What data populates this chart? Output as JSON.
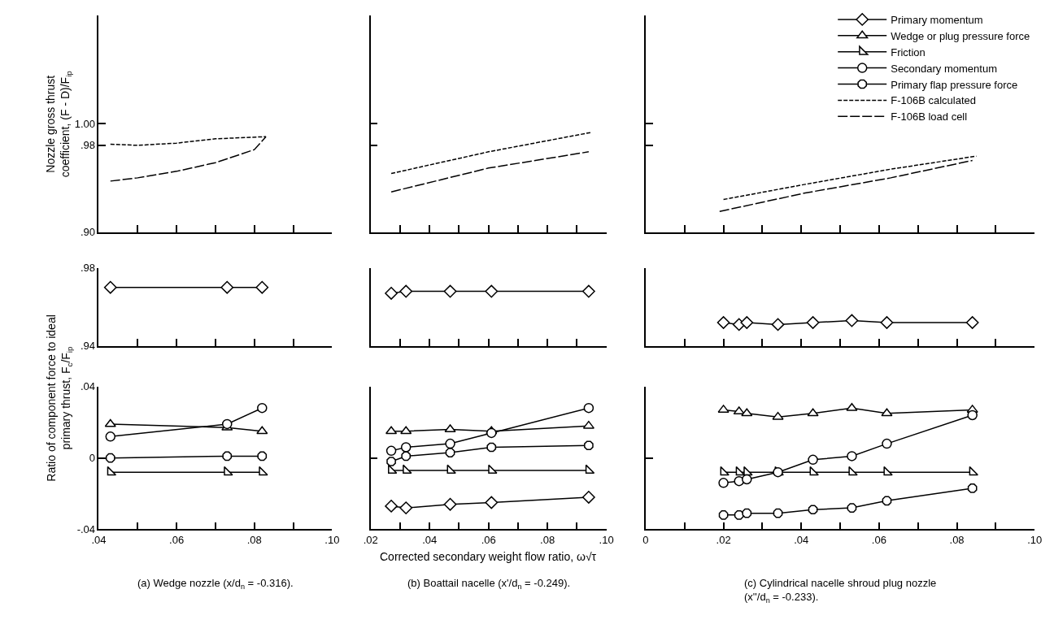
{
  "chart_data": [
    {
      "type": "line",
      "legend": "top right",
      "ylabel": "Nozzle gross thrust\ncoefficient, (F - D)/F$_{ip}$",
      "xlim": [
        0.04,
        0.1
      ],
      "xticks": [
        {
          "value": 0.04,
          "label": ".04"
        },
        {
          "value": 0.05,
          "label": null
        },
        {
          "value": 0.06,
          "label": ".06"
        },
        {
          "value": 0.07,
          "label": null
        },
        {
          "value": 0.08,
          "label": ".08"
        },
        {
          "value": 0.09,
          "label": null
        },
        {
          "value": 0.1,
          "label": ".10"
        }
      ],
      "ylim": [
        0.9,
        1.1
      ],
      "yticks": [
        {
          "value": 0.9,
          "label": ".90"
        },
        {
          "value": 0.98,
          "label": ".98"
        },
        {
          "value": 1.0,
          "label": "1.00"
        }
      ],
      "tick_labels": "y",
      "series": [
        {
          "name": "F-106B calculated",
          "color": "#000000",
          "marker": "none",
          "line_style": "dashed",
          "x": [
            0.043,
            0.05,
            0.06,
            0.07,
            0.083
          ],
          "values": [
            0.981,
            0.98,
            0.982,
            0.986,
            0.988
          ]
        },
        {
          "name": "F-106B load cell",
          "color": "#000000",
          "marker": "none",
          "line_style": "dashed",
          "x": [
            0.043,
            0.05,
            0.06,
            0.07,
            0.08,
            0.083
          ],
          "values": [
            0.947,
            0.95,
            0.956,
            0.964,
            0.976,
            0.988
          ]
        }
      ]
    },
    {
      "type": "line",
      "legend": "top right",
      "xlim": [
        0.02,
        0.1
      ],
      "xticks": [
        {
          "value": 0.02,
          "label": ".02"
        },
        {
          "value": 0.03,
          "label": null
        },
        {
          "value": 0.04,
          "label": ".04"
        },
        {
          "value": 0.05,
          "label": null
        },
        {
          "value": 0.06,
          "label": ".06"
        },
        {
          "value": 0.07,
          "label": null
        },
        {
          "value": 0.08,
          "label": ".08"
        },
        {
          "value": 0.09,
          "label": null
        },
        {
          "value": 0.1,
          "label": ".10"
        }
      ],
      "ylim": [
        0.9,
        1.1
      ],
      "yticks": [
        {
          "value": 0.9,
          "label": ".90"
        },
        {
          "value": 0.98,
          "label": ".98"
        },
        {
          "value": 1.0,
          "label": "1.00"
        }
      ],
      "tick_labels": false,
      "series": [
        {
          "name": "F-106B calculated",
          "color": "#000000",
          "marker": "none",
          "line_style": "dashed",
          "x": [
            0.027,
            0.06,
            0.095
          ],
          "values": [
            0.954,
            0.974,
            0.992
          ]
        },
        {
          "name": "F-106B load cell",
          "color": "#000000",
          "marker": "none",
          "line_style": "dashed",
          "x": [
            0.027,
            0.06,
            0.094
          ],
          "values": [
            0.937,
            0.959,
            0.974
          ]
        }
      ]
    },
    {
      "type": "line",
      "legend": "top right",
      "xlim": [
        0,
        0.1
      ],
      "xticks": [
        {
          "value": 0,
          "label": "0"
        },
        {
          "value": 0.01,
          "label": null
        },
        {
          "value": 0.02,
          "label": ".02"
        },
        {
          "value": 0.03,
          "label": null
        },
        {
          "value": 0.04,
          "label": ".04"
        },
        {
          "value": 0.05,
          "label": null
        },
        {
          "value": 0.06,
          "label": ".06"
        },
        {
          "value": 0.07,
          "label": null
        },
        {
          "value": 0.08,
          "label": ".08"
        },
        {
          "value": 0.09,
          "label": null
        },
        {
          "value": 0.1,
          "label": ".10"
        }
      ],
      "ylim": [
        0.9,
        1.1
      ],
      "yticks": [
        {
          "value": 0.9,
          "label": ".90"
        },
        {
          "value": 0.98,
          "label": ".98"
        },
        {
          "value": 1.0,
          "label": "1.00"
        }
      ],
      "tick_labels": false,
      "series": [
        {
          "name": "F-106B calculated",
          "color": "#000000",
          "marker": "none",
          "line_style": "dashed",
          "x": [
            0.02,
            0.041,
            0.063,
            0.085
          ],
          "values": [
            0.93,
            0.944,
            0.958,
            0.97
          ]
        },
        {
          "name": "F-106B load cell",
          "color": "#000000",
          "marker": "none",
          "line_style": "dashed",
          "x": [
            0.019,
            0.041,
            0.063,
            0.084
          ],
          "values": [
            0.919,
            0.936,
            0.95,
            0.966
          ]
        }
      ]
    },
    {
      "type": "line",
      "legend": "top right",
      "ylabel": "Ratio of component force to ideal\nprimary thrust, F$_{c}$/F$_{ip}$",
      "xlim": [
        0.04,
        0.1
      ],
      "xticks": [
        {
          "value": 0.04,
          "label": ".04"
        },
        {
          "value": 0.05,
          "label": null
        },
        {
          "value": 0.06,
          "label": ".06"
        },
        {
          "value": 0.07,
          "label": null
        },
        {
          "value": 0.08,
          "label": ".08"
        },
        {
          "value": 0.09,
          "label": null
        },
        {
          "value": 0.1,
          "label": ".10"
        }
      ],
      "ylim": [
        0.94,
        0.98
      ],
      "yticks": [
        {
          "value": 0.94,
          "label": ".94"
        },
        {
          "value": 0.98,
          "label": ".98"
        }
      ],
      "tick_labels": "y",
      "series": [
        {
          "name": "Primary momentum",
          "color": "#000000",
          "marker": "diamond",
          "line_style": "solid",
          "x": [
            0.043,
            0.073,
            0.082
          ],
          "values": [
            0.97,
            0.97,
            0.97
          ]
        }
      ]
    },
    {
      "type": "line",
      "legend": "top right",
      "xlim": [
        0.02,
        0.1
      ],
      "xticks": [
        {
          "value": 0.02,
          "label": ".02"
        },
        {
          "value": 0.03,
          "label": null
        },
        {
          "value": 0.04,
          "label": ".04"
        },
        {
          "value": 0.05,
          "label": null
        },
        {
          "value": 0.06,
          "label": ".06"
        },
        {
          "value": 0.07,
          "label": null
        },
        {
          "value": 0.08,
          "label": ".08"
        },
        {
          "value": 0.09,
          "label": null
        },
        {
          "value": 0.1,
          "label": ".10"
        }
      ],
      "ylim": [
        0.94,
        0.98
      ],
      "yticks": [
        {
          "value": 0.94,
          "label": ".94"
        },
        {
          "value": 0.98,
          "label": ".98"
        }
      ],
      "tick_labels": false,
      "series": [
        {
          "name": "Primary momentum",
          "color": "#000000",
          "marker": "diamond",
          "line_style": "solid",
          "x": [
            0.027,
            0.032,
            0.047,
            0.061,
            0.094
          ],
          "values": [
            0.967,
            0.968,
            0.968,
            0.968,
            0.968
          ]
        }
      ]
    },
    {
      "type": "line",
      "legend": "top right",
      "xlim": [
        0,
        0.1
      ],
      "xticks": [
        {
          "value": 0,
          "label": "0"
        },
        {
          "value": 0.01,
          "label": null
        },
        {
          "value": 0.02,
          "label": ".02"
        },
        {
          "value": 0.03,
          "label": null
        },
        {
          "value": 0.04,
          "label": ".04"
        },
        {
          "value": 0.05,
          "label": null
        },
        {
          "value": 0.06,
          "label": ".06"
        },
        {
          "value": 0.07,
          "label": null
        },
        {
          "value": 0.08,
          "label": ".08"
        },
        {
          "value": 0.09,
          "label": null
        },
        {
          "value": 0.1,
          "label": ".10"
        }
      ],
      "ylim": [
        0.94,
        0.98
      ],
      "yticks": [
        {
          "value": 0.94,
          "label": ".94"
        },
        {
          "value": 0.98,
          "label": ".98"
        }
      ],
      "tick_labels": false,
      "series": [
        {
          "name": "Primary momentum",
          "color": "#000000",
          "marker": "diamond",
          "line_style": "solid",
          "x": [
            0.02,
            0.024,
            0.026,
            0.034,
            0.043,
            0.053,
            0.062,
            0.084
          ],
          "values": [
            0.952,
            0.951,
            0.952,
            0.951,
            0.952,
            0.953,
            0.952,
            0.952
          ]
        }
      ]
    },
    {
      "type": "line",
      "legend": "top right",
      "annotations": [
        "(a) Wedge nozzle (x/d$_{n}$ = -0.316)."
      ],
      "xlim": [
        0.04,
        0.1
      ],
      "xticks": [
        {
          "value": 0.04,
          "label": ".04"
        },
        {
          "value": 0.05,
          "label": null
        },
        {
          "value": 0.06,
          "label": ".06"
        },
        {
          "value": 0.07,
          "label": null
        },
        {
          "value": 0.08,
          "label": ".08"
        },
        {
          "value": 0.09,
          "label": null
        },
        {
          "value": 0.1,
          "label": ".10"
        }
      ],
      "ylim": [
        -0.04,
        0.04
      ],
      "yticks": [
        {
          "value": -0.04,
          "label": "-.04"
        },
        {
          "value": 0,
          "label": "0"
        },
        {
          "value": 0.04,
          "label": ".04"
        }
      ],
      "series": [
        {
          "name": "Wedge or plug pressure force",
          "color": "#000000",
          "marker": "triangle",
          "line_style": "solid",
          "x": [
            0.043,
            0.073,
            0.082
          ],
          "values": [
            0.019,
            0.017,
            0.015
          ]
        },
        {
          "name": "Friction",
          "color": "#000000",
          "marker": "triangle",
          "line_style": "solid",
          "x": [
            0.043,
            0.073,
            0.082
          ],
          "values": [
            -0.008,
            -0.008,
            -0.008
          ]
        },
        {
          "name": "Secondary momentum",
          "color": "#000000",
          "marker": "circle",
          "line_style": "solid",
          "x": [
            0.043,
            0.073,
            0.082
          ],
          "values": [
            0.012,
            0.019,
            0.028
          ]
        },
        {
          "name": "Primary flap pressure force",
          "color": "#000000",
          "marker": "circle",
          "line_style": "solid",
          "x": [
            0.043,
            0.073,
            0.082
          ],
          "values": [
            0.0,
            0.001,
            0.001
          ]
        }
      ]
    },
    {
      "type": "line",
      "legend": "top right",
      "xlabel": "Corrected secondary weight flow ratio, ω√τ",
      "annotations": [
        "(b) Boattail nacelle (x'/d$_{n}$ = -0.249)."
      ],
      "xlim": [
        0.02,
        0.1
      ],
      "xticks": [
        {
          "value": 0.02,
          "label": ".02"
        },
        {
          "value": 0.03,
          "label": null
        },
        {
          "value": 0.04,
          "label": ".04"
        },
        {
          "value": 0.05,
          "label": null
        },
        {
          "value": 0.06,
          "label": ".06"
        },
        {
          "value": 0.07,
          "label": null
        },
        {
          "value": 0.08,
          "label": ".08"
        },
        {
          "value": 0.09,
          "label": null
        },
        {
          "value": 0.1,
          "label": ".10"
        }
      ],
      "ylim": [
        -0.04,
        0.04
      ],
      "yticks": [
        {
          "value": -0.04,
          "label": "-.04"
        },
        {
          "value": 0,
          "label": "0"
        },
        {
          "value": 0.04,
          "label": ".04"
        }
      ],
      "tick_labels": "x",
      "series": [
        {
          "name": "Primary momentum",
          "color": "#000000",
          "marker": "diamond",
          "line_style": "solid",
          "x": [
            0.027,
            0.032,
            0.047,
            0.061,
            0.094
          ],
          "values": [
            -0.027,
            -0.028,
            -0.026,
            -0.025,
            -0.022
          ]
        },
        {
          "name": "Wedge or plug pressure force",
          "color": "#000000",
          "marker": "triangle",
          "line_style": "solid",
          "x": [
            0.027,
            0.032,
            0.047,
            0.061,
            0.094
          ],
          "values": [
            0.015,
            0.015,
            0.016,
            0.015,
            0.018
          ]
        },
        {
          "name": "Friction",
          "color": "#000000",
          "marker": "triangle",
          "line_style": "solid",
          "x": [
            0.027,
            0.032,
            0.047,
            0.061,
            0.094
          ],
          "values": [
            -0.007,
            -0.007,
            -0.007,
            -0.007,
            -0.007
          ]
        },
        {
          "name": "Secondary momentum",
          "color": "#000000",
          "marker": "circle",
          "line_style": "solid",
          "x": [
            0.027,
            0.032,
            0.047,
            0.061,
            0.094
          ],
          "values": [
            0.004,
            0.006,
            0.008,
            0.014,
            0.028
          ]
        },
        {
          "name": "Primary flap pressure force",
          "color": "#000000",
          "marker": "circle",
          "line_style": "solid",
          "x": [
            0.027,
            0.032,
            0.047,
            0.061,
            0.094
          ],
          "values": [
            -0.002,
            0.001,
            0.003,
            0.006,
            0.007
          ]
        }
      ]
    },
    {
      "type": "line",
      "legend": "top right",
      "annotations": [
        "(c) Cylindrical nacelle shroud plug nozzle\n(x''/d$_{n}$ = -0.233)."
      ],
      "xlim": [
        0,
        0.1
      ],
      "xticks": [
        {
          "value": 0,
          "label": "0"
        },
        {
          "value": 0.01,
          "label": null
        },
        {
          "value": 0.02,
          "label": ".02"
        },
        {
          "value": 0.03,
          "label": null
        },
        {
          "value": 0.04,
          "label": ".04"
        },
        {
          "value": 0.05,
          "label": null
        },
        {
          "value": 0.06,
          "label": ".06"
        },
        {
          "value": 0.07,
          "label": null
        },
        {
          "value": 0.08,
          "label": ".08"
        },
        {
          "value": 0.09,
          "label": null
        },
        {
          "value": 0.1,
          "label": ".10"
        }
      ],
      "ylim": [
        -0.04,
        0.04
      ],
      "yticks": [
        {
          "value": -0.04,
          "label": "-.04"
        },
        {
          "value": 0,
          "label": "0"
        },
        {
          "value": 0.04,
          "label": ".04"
        }
      ],
      "tick_labels": "x",
      "series": [
        {
          "name": "Wedge or plug pressure force",
          "color": "#000000",
          "marker": "triangle",
          "line_style": "solid",
          "x": [
            0.02,
            0.024,
            0.026,
            0.034,
            0.043,
            0.053,
            0.062,
            0.084
          ],
          "values": [
            0.027,
            0.026,
            0.025,
            0.023,
            0.025,
            0.028,
            0.025,
            0.027
          ]
        },
        {
          "name": "Friction",
          "color": "#000000",
          "marker": "triangle",
          "line_style": "solid",
          "x": [
            0.02,
            0.024,
            0.026,
            0.034,
            0.043,
            0.053,
            0.062,
            0.084
          ],
          "values": [
            -0.008,
            -0.008,
            -0.008,
            -0.008,
            -0.008,
            -0.008,
            -0.008,
            -0.008
          ]
        },
        {
          "name": "Secondary momentum",
          "color": "#000000",
          "marker": "circle",
          "line_style": "solid",
          "x": [
            0.02,
            0.024,
            0.026,
            0.034,
            0.043,
            0.053,
            0.062,
            0.084
          ],
          "values": [
            -0.014,
            -0.013,
            -0.012,
            -0.008,
            -0.001,
            0.001,
            0.008,
            0.024
          ]
        },
        {
          "name": "Primary flap pressure force",
          "color": "#000000",
          "marker": "circle",
          "line_style": "solid",
          "x": [
            0.02,
            0.024,
            0.026,
            0.034,
            0.043,
            0.053,
            0.062,
            0.084
          ],
          "values": [
            -0.032,
            -0.032,
            -0.031,
            -0.031,
            -0.029,
            -0.028,
            -0.024,
            -0.017
          ]
        }
      ]
    }
  ]
}
